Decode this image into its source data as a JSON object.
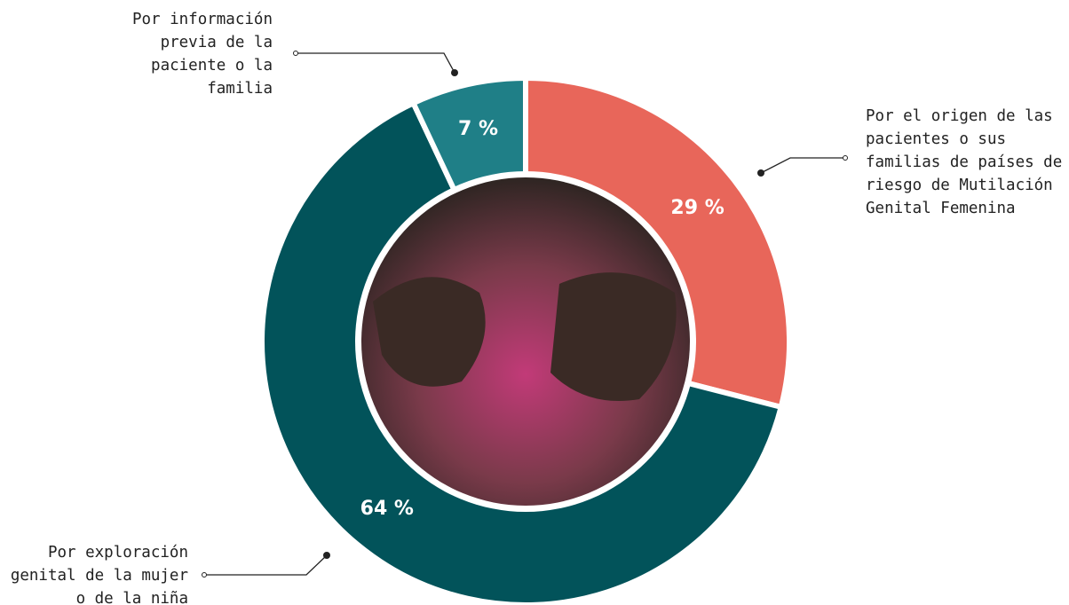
{
  "chart_data": {
    "type": "donut",
    "categories": [
      "Por el origen de las pacientes o sus familias de países de riesgo de Mutilación Genital Femenina",
      "Por exploración genital de la mujer o de la niña",
      "Por información previa de la paciente o la familia"
    ],
    "values": [
      29,
      64,
      7
    ],
    "value_labels": [
      "29 %",
      "64 %",
      "7 %"
    ],
    "colors": [
      "#e8665a",
      "#02535a",
      "#1f7f87"
    ]
  }
}
